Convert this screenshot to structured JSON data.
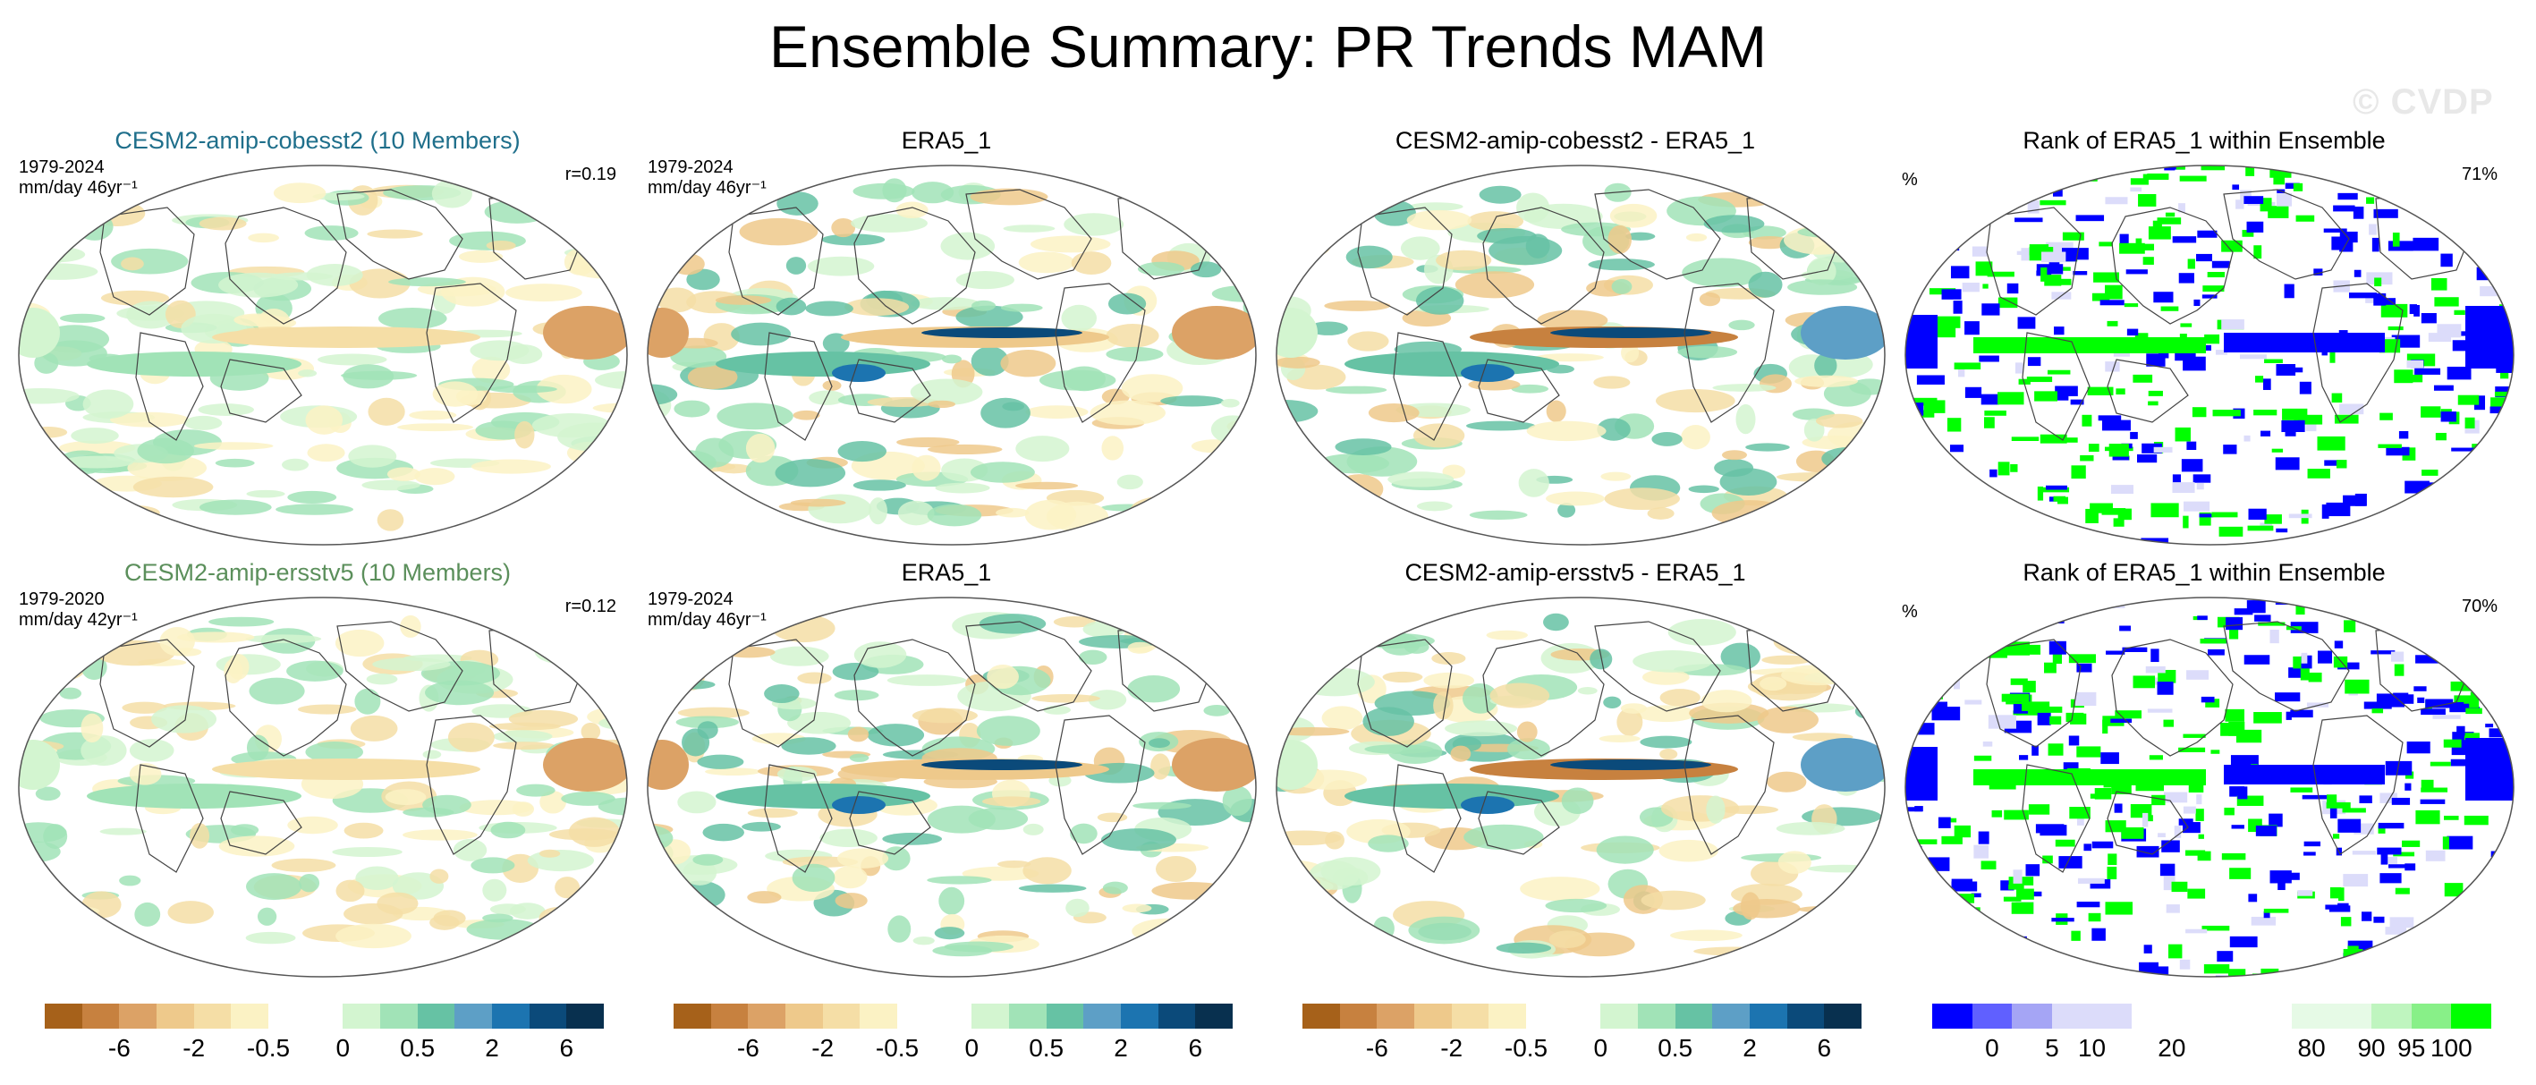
{
  "title": "Ensemble Summary: PR Trends MAM",
  "watermark": "© CVDP",
  "colors": {
    "model1_title": "#1f6f8b",
    "model2_title": "#5b8f5b",
    "ocean_pos": "#7fcfb0",
    "ocean_neg": "#e8b877",
    "rank_low": "#0000ff",
    "rank_high": "#00ff00"
  },
  "rows": [
    {
      "panels": [
        {
          "title": "CESM2-amip-cobesst2 (10 Members)",
          "years": "1979-2024",
          "units": "mm/day 46yr⁻¹",
          "r": "r=0.19",
          "kind": "model"
        },
        {
          "title": "ERA5_1",
          "years": "1979-2024",
          "units": "mm/day 46yr⁻¹",
          "kind": "obs"
        },
        {
          "title": "CESM2-amip-cobesst2 - ERA5_1",
          "kind": "diff"
        },
        {
          "title": "Rank of ERA5_1 within Ensemble",
          "pct_symbol": "%",
          "pct": "71%",
          "kind": "rank"
        }
      ]
    },
    {
      "panels": [
        {
          "title": "CESM2-amip-ersstv5 (10 Members)",
          "years": "1979-2020",
          "units": "mm/day 42yr⁻¹",
          "r": "r=0.12",
          "kind": "model"
        },
        {
          "title": "ERA5_1",
          "years": "1979-2024",
          "units": "mm/day 46yr⁻¹",
          "kind": "obs"
        },
        {
          "title": "CESM2-amip-ersstv5 - ERA5_1",
          "kind": "diff"
        },
        {
          "title": "Rank of ERA5_1 within Ensemble",
          "pct_symbol": "%",
          "pct": "70%",
          "kind": "rank"
        }
      ]
    }
  ],
  "colorbars": {
    "trend_colors": [
      "#a6611a",
      "#c7813f",
      "#dca266",
      "#eec98b",
      "#f5dea6",
      "#fbf2c4",
      "#ffffff",
      "#ffffff",
      "#d3f5d0",
      "#a1e3b7",
      "#66c2a4",
      "#5d9fc6",
      "#1c74b0",
      "#0b4a7a",
      "#08304f"
    ],
    "trend_ticks": [
      "-6",
      "-2",
      "-0.5",
      "0",
      "0.5",
      "2",
      "6"
    ],
    "rank_colors": [
      "#0000ff",
      "#6060ff",
      "#a5a5f5",
      "#dcdcfa",
      "#dcdcfa",
      "#ffffff",
      "#ffffff",
      "#ffffff",
      "#ffffff",
      "#e6fae6",
      "#e6fae6",
      "#bff5bf",
      "#88f088",
      "#00ff00"
    ],
    "rank_ticks": [
      "0",
      "5",
      "10",
      "20",
      "80",
      "90",
      "95",
      "100"
    ]
  }
}
